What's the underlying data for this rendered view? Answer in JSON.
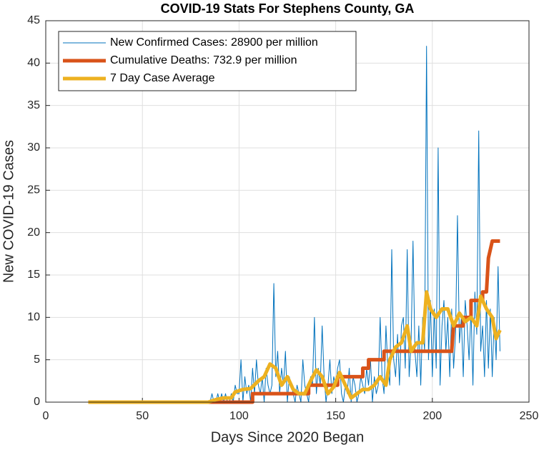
{
  "chart_data": {
    "type": "line",
    "title": "COVID-19 Stats For Stephens County, GA",
    "x_label": "Days Since 2020 Began",
    "y_label": "New COVID-19 Cases",
    "xlim": [
      0,
      250
    ],
    "xticks": [
      0,
      50,
      100,
      150,
      200,
      250
    ],
    "ylim": [
      0,
      45
    ],
    "yticks": [
      0,
      5,
      10,
      15,
      20,
      25,
      30,
      35,
      40,
      45
    ],
    "grid": true,
    "legend_position": "upper-left",
    "series": [
      {
        "name": "New Confirmed Cases: 28900 per million",
        "color": "#0072BD",
        "line_width": 1,
        "x": [
          22,
          85,
          86,
          87,
          88,
          89,
          90,
          91,
          92,
          93,
          94,
          95,
          96,
          97,
          98,
          99,
          100,
          101,
          102,
          103,
          104,
          105,
          106,
          107,
          108,
          109,
          110,
          111,
          112,
          113,
          114,
          115,
          116,
          117,
          118,
          119,
          120,
          121,
          122,
          123,
          124,
          125,
          126,
          127,
          128,
          129,
          130,
          131,
          132,
          133,
          134,
          135,
          136,
          137,
          138,
          139,
          140,
          141,
          142,
          143,
          144,
          145,
          146,
          147,
          148,
          149,
          150,
          151,
          152,
          153,
          154,
          155,
          156,
          157,
          158,
          159,
          160,
          161,
          162,
          163,
          164,
          165,
          166,
          167,
          168,
          169,
          170,
          171,
          172,
          173,
          174,
          175,
          176,
          177,
          178,
          179,
          180,
          181,
          182,
          183,
          184,
          185,
          186,
          187,
          188,
          189,
          190,
          191,
          192,
          193,
          194,
          195,
          196,
          197,
          198,
          199,
          200,
          201,
          202,
          203,
          204,
          205,
          206,
          207,
          208,
          209,
          210,
          211,
          212,
          213,
          214,
          215,
          216,
          217,
          218,
          219,
          220,
          221,
          222,
          223,
          224,
          225,
          226,
          227,
          228,
          229,
          230,
          231,
          232,
          233,
          234,
          235
        ],
        "values": [
          0,
          0,
          1,
          0,
          0,
          1,
          0,
          1,
          0,
          1,
          0,
          0,
          1,
          0,
          2,
          1,
          1,
          5,
          0,
          3,
          1,
          2,
          0,
          4,
          1,
          5,
          2,
          1,
          3,
          0,
          4,
          2,
          1,
          2,
          14,
          3,
          6,
          1,
          4,
          2,
          6,
          0,
          3,
          2,
          1,
          0,
          2,
          1,
          0,
          5,
          2,
          1,
          0,
          3,
          2,
          10,
          1,
          4,
          2,
          9,
          3,
          0,
          2,
          5,
          1,
          3,
          2,
          4,
          5,
          1,
          0,
          2,
          1,
          4,
          0,
          3,
          2,
          0,
          1,
          3,
          2,
          1,
          4,
          2,
          5,
          0,
          3,
          1,
          2,
          10,
          3,
          1,
          9,
          4,
          2,
          18,
          5,
          3,
          8,
          2,
          9,
          10,
          4,
          18,
          3,
          7,
          19,
          6,
          3,
          9,
          2,
          10,
          6,
          42,
          5,
          12,
          3,
          11,
          4,
          30,
          2,
          9,
          12,
          6,
          10,
          3,
          11,
          4,
          8,
          22,
          7,
          10,
          3,
          12,
          9,
          5,
          11,
          2,
          13,
          8,
          32,
          6,
          9,
          3,
          12,
          4,
          11,
          3,
          10,
          5,
          16,
          6
        ]
      },
      {
        "name": "Cumulative Deaths: 732.9 per million",
        "color": "#D95319",
        "line_width": 5,
        "x": [
          22,
          107,
          107,
          136,
          136,
          151,
          151,
          164,
          164,
          167,
          167,
          175,
          175,
          210,
          211,
          216,
          216,
          220,
          220,
          226,
          226,
          228,
          229,
          231,
          235
        ],
        "values": [
          0,
          0,
          1,
          1,
          2,
          2,
          3,
          3,
          4,
          4,
          5,
          5,
          6,
          6,
          9,
          9,
          10,
          10,
          12,
          12,
          13,
          13,
          17,
          19,
          19
        ]
      },
      {
        "name": "7 Day Case Average",
        "color": "#EDB120",
        "line_width": 5,
        "x": [
          22,
          84,
          88,
          92,
          96,
          98,
          102,
          106,
          110,
          113,
          116,
          119,
          122,
          125,
          128,
          131,
          134,
          137,
          140,
          143,
          146,
          149,
          152,
          155,
          158,
          161,
          164,
          167,
          170,
          173,
          176,
          178,
          181,
          184,
          187,
          189,
          192,
          195,
          197,
          199,
          202,
          205,
          208,
          211,
          214,
          217,
          220,
          223,
          225,
          228,
          231,
          233,
          235
        ],
        "values": [
          0,
          0,
          0.3,
          0.5,
          0.5,
          1.2,
          1.5,
          1.6,
          2.5,
          3,
          4.5,
          4,
          2,
          3,
          1.5,
          1,
          1,
          2.5,
          3.8,
          3,
          1,
          1.8,
          3.5,
          2,
          0.5,
          1,
          1.5,
          1.5,
          2,
          3,
          2,
          5,
          6.5,
          7,
          9,
          6,
          7,
          7,
          13,
          11,
          10,
          11,
          11,
          9,
          10.5,
          9.5,
          10,
          9,
          12.5,
          11,
          10,
          7.5,
          8.5
        ]
      }
    ]
  }
}
